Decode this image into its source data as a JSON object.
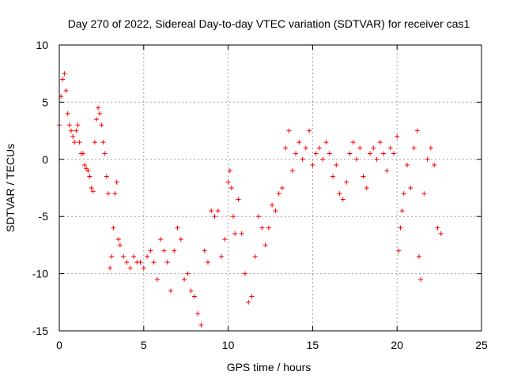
{
  "chart_data": {
    "type": "scatter",
    "title": "Day 270 of 2022, Sidereal Day-to-day VTEC variation (SDTVAR) for receiver cas1",
    "xlabel": "GPS time / hours",
    "ylabel": "SDTVAR / TECUs",
    "xlim": [
      0,
      25
    ],
    "ylim": [
      -15,
      10
    ],
    "xticks": [
      0,
      5,
      10,
      15,
      20,
      25
    ],
    "yticks": [
      -15,
      -10,
      -5,
      0,
      5,
      10
    ],
    "grid": true,
    "marker": "+",
    "series": [
      {
        "name": "SDTVAR",
        "color": "#ff0000",
        "x": [
          0.0,
          0.1,
          0.2,
          0.3,
          0.4,
          0.5,
          0.6,
          0.7,
          0.8,
          0.9,
          1.0,
          1.1,
          1.2,
          1.3,
          1.4,
          1.5,
          1.6,
          1.7,
          1.8,
          1.9,
          2.0,
          2.1,
          2.2,
          2.3,
          2.4,
          2.5,
          2.6,
          2.7,
          2.8,
          2.9,
          3.0,
          3.1,
          3.2,
          3.3,
          3.4,
          3.5,
          3.6,
          3.8,
          4.0,
          4.2,
          4.4,
          4.6,
          4.8,
          5.0,
          5.2,
          5.4,
          5.6,
          5.8,
          6.0,
          6.2,
          6.4,
          6.6,
          6.8,
          7.0,
          7.2,
          7.4,
          7.6,
          7.8,
          8.0,
          8.2,
          8.4,
          8.6,
          8.8,
          9.0,
          9.2,
          9.4,
          9.6,
          9.8,
          10.0,
          10.1,
          10.2,
          10.3,
          10.4,
          10.6,
          10.8,
          11.0,
          11.2,
          11.4,
          11.6,
          11.8,
          12.0,
          12.2,
          12.4,
          12.6,
          12.8,
          13.0,
          13.2,
          13.4,
          13.6,
          13.8,
          14.0,
          14.2,
          14.4,
          14.6,
          14.8,
          15.0,
          15.2,
          15.4,
          15.6,
          15.8,
          16.0,
          16.2,
          16.4,
          16.6,
          16.8,
          17.0,
          17.2,
          17.4,
          17.6,
          17.8,
          18.0,
          18.2,
          18.4,
          18.6,
          18.8,
          19.0,
          19.2,
          19.4,
          19.6,
          19.8,
          20.0,
          20.1,
          20.2,
          20.3,
          20.4,
          20.6,
          20.8,
          21.0,
          21.2,
          21.3,
          21.4,
          21.6,
          21.8,
          22.0,
          22.2,
          22.4,
          22.6
        ],
        "y": [
          3.0,
          5.5,
          7.0,
          7.5,
          6.0,
          4.0,
          3.0,
          2.5,
          2.0,
          1.5,
          2.5,
          3.0,
          1.5,
          0.5,
          0.5,
          -0.5,
          -0.8,
          -1.0,
          -1.5,
          -2.5,
          -2.8,
          1.5,
          3.5,
          4.5,
          4.0,
          3.0,
          1.5,
          0.5,
          -1.5,
          -3.0,
          -9.5,
          -8.5,
          -6.0,
          -3.0,
          -2.0,
          -7.0,
          -7.5,
          -8.5,
          -9.0,
          -9.5,
          -8.5,
          -9.0,
          -9.0,
          -9.5,
          -8.5,
          -8.0,
          -9.0,
          -10.5,
          -7.0,
          -8.0,
          -9.0,
          -11.5,
          -8.0,
          -6.0,
          -7.0,
          -10.5,
          -10.0,
          -11.5,
          -12.0,
          -13.5,
          -14.5,
          -8.0,
          -9.0,
          -4.5,
          -5.0,
          -4.5,
          -8.5,
          -7.0,
          -2.0,
          -1.0,
          -2.5,
          -5.0,
          -6.5,
          -3.5,
          -6.5,
          -10.0,
          -12.5,
          -12.0,
          -8.5,
          -5.0,
          -6.0,
          -7.5,
          -6.0,
          -4.0,
          -4.5,
          -3.0,
          -2.5,
          1.0,
          2.5,
          -1.0,
          0.5,
          1.5,
          0.0,
          1.0,
          2.5,
          -0.5,
          0.5,
          1.0,
          0.0,
          1.5,
          0.5,
          -1.5,
          -0.5,
          -3.0,
          -3.5,
          -2.0,
          0.5,
          1.5,
          0.0,
          1.0,
          -1.5,
          -2.5,
          0.5,
          1.0,
          0.0,
          1.5,
          0.5,
          -1.0,
          1.0,
          0.5,
          2.0,
          -8.0,
          -6.0,
          -4.5,
          -3.0,
          -0.5,
          -2.5,
          1.0,
          2.5,
          -8.5,
          -10.5,
          -3.0,
          0.0,
          1.0,
          -0.5,
          -6.0,
          -6.5
        ]
      }
    ]
  }
}
